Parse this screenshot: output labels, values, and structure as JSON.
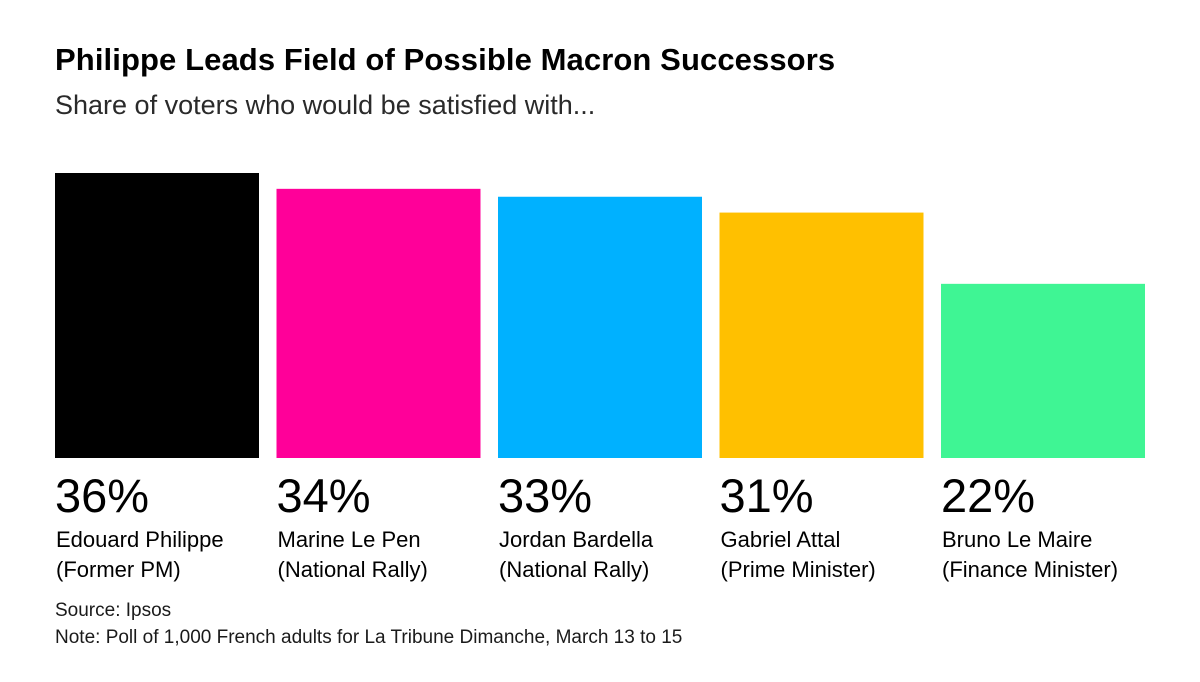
{
  "header": {
    "title": "Philippe Leads Field of Possible Macron Successors",
    "subtitle": "Share of voters who would be satisfied with..."
  },
  "footer": {
    "source": "Source: Ipsos",
    "note": "Note: Poll of 1,000 French adults for La Tribune Dimanche, March 13 to 15"
  },
  "chart_data": {
    "type": "bar",
    "title": "Philippe Leads Field of Possible Macron Successors",
    "subtitle": "Share of voters who would be satisfied with...",
    "categories": [
      {
        "name": "Edouard Philippe",
        "role": "(Former PM)"
      },
      {
        "name": "Marine Le Pen",
        "role": "(National Rally)"
      },
      {
        "name": "Jordan Bardella",
        "role": "(National Rally)"
      },
      {
        "name": "Gabriel Attal",
        "role": "(Prime Minister)"
      },
      {
        "name": "Bruno Le Maire",
        "role": "(Finance Minister)"
      }
    ],
    "values": [
      36,
      34,
      33,
      31,
      22
    ],
    "value_labels": [
      "36%",
      "34%",
      "33%",
      "31%",
      "22%"
    ],
    "colors": [
      "#000000",
      "#ff0099",
      "#00b1ff",
      "#ffc000",
      "#3ff594"
    ],
    "ylim": [
      0,
      36
    ],
    "unit": "%",
    "grid": false,
    "legend": "none"
  }
}
